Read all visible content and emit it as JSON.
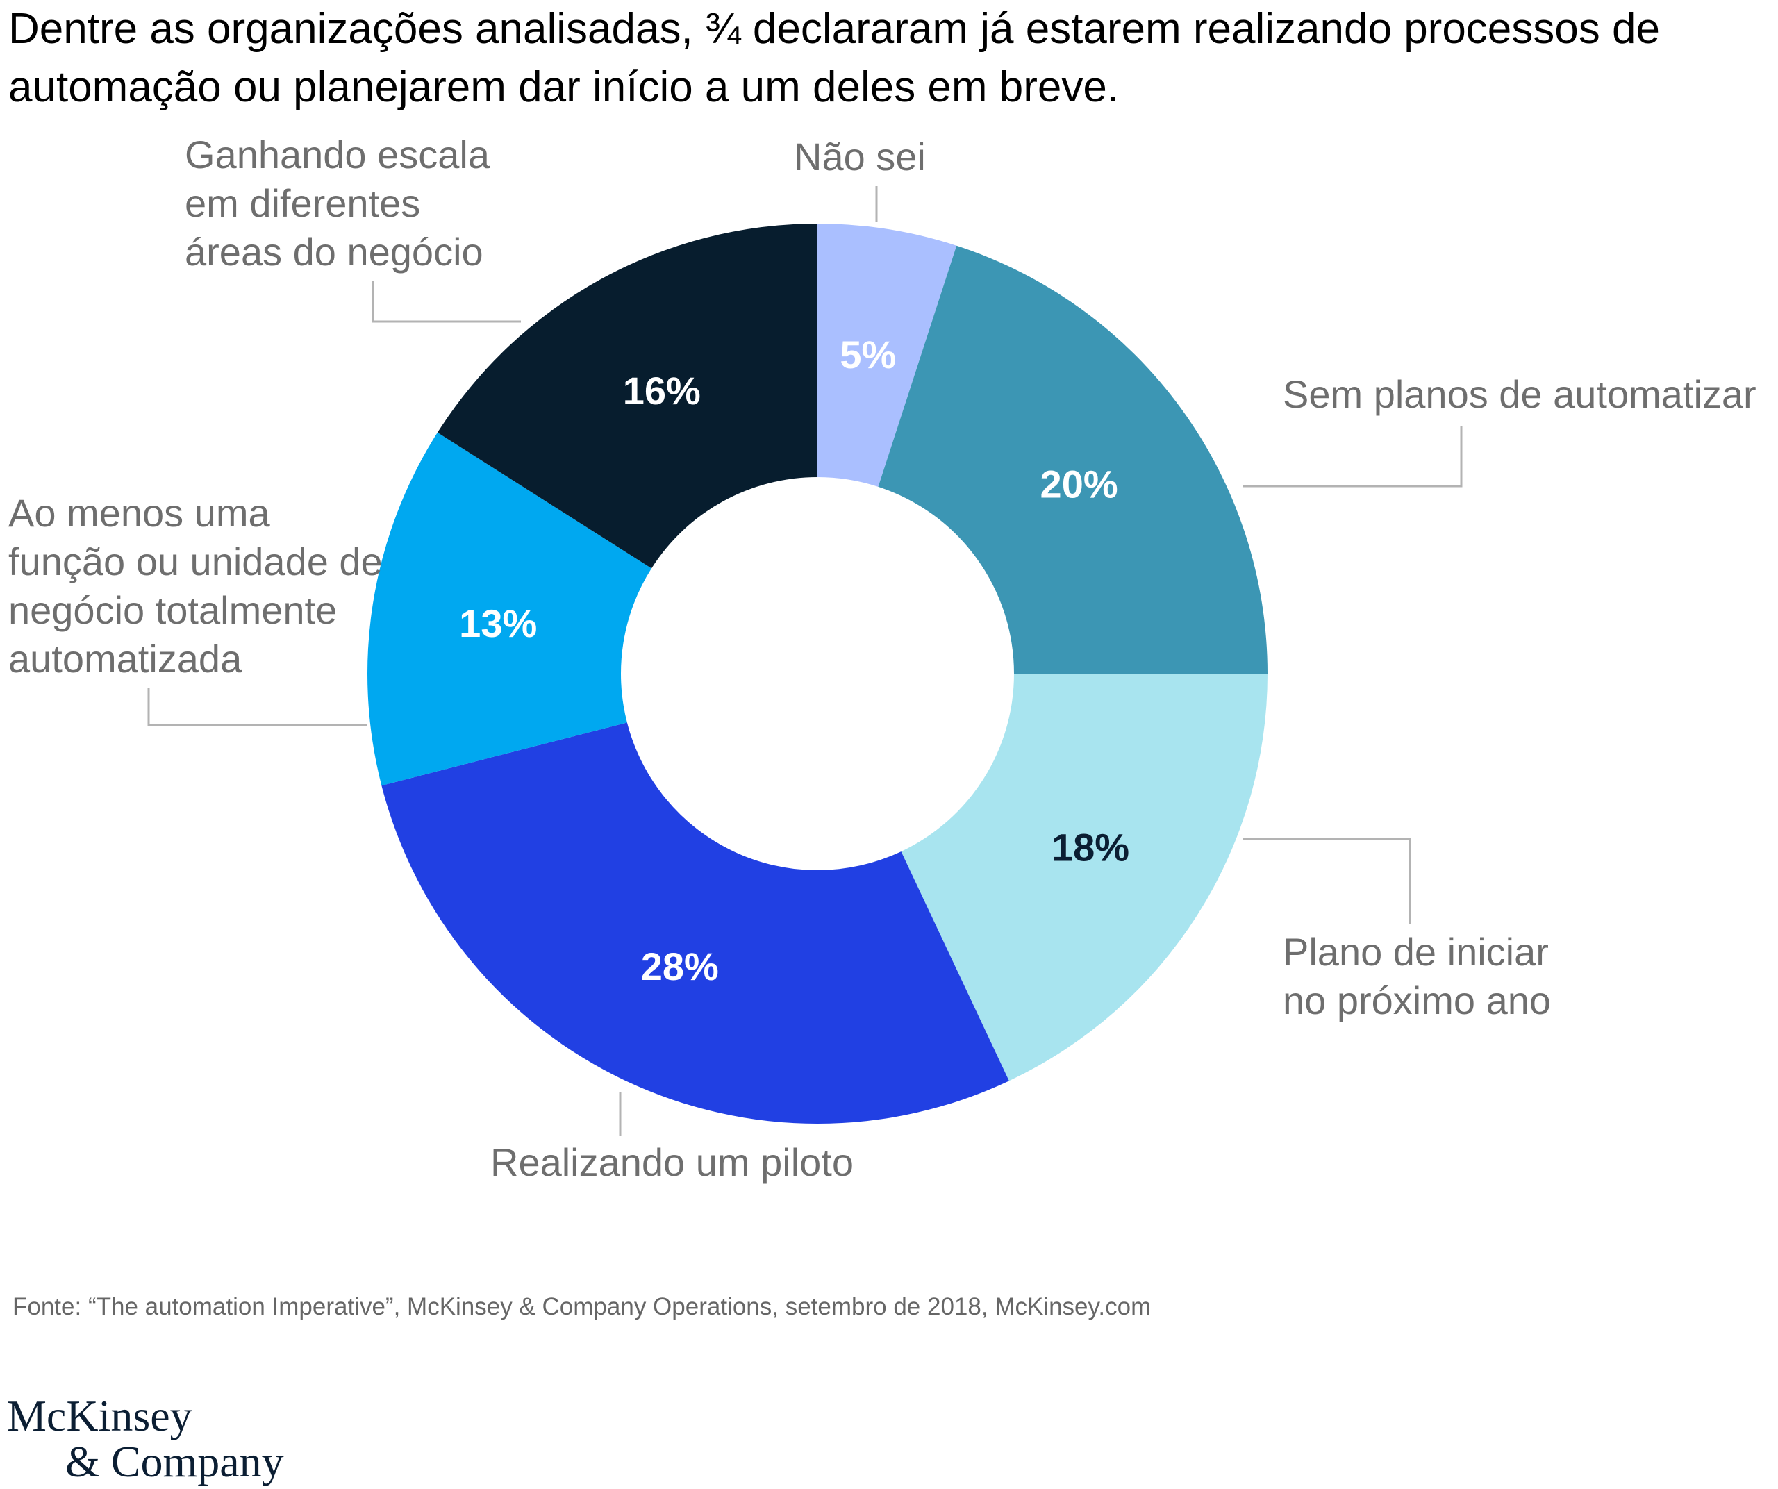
{
  "title": "Dentre as organizações analisadas, ¾ declararam já estarem realizando processos de automação ou planejarem dar início a um deles em breve.",
  "source": "Fonte: “The automation Imperative”, McKinsey & Company Operations, setembro de 2018, McKinsey.com",
  "logo": {
    "line1": "McKinsey",
    "line2": "& Company"
  },
  "chart_data": {
    "type": "pie",
    "variant": "donut",
    "start": "12 o'clock, clockwise",
    "unit": "%",
    "slices": [
      {
        "label": "Não sei",
        "value": 5,
        "display": "5%",
        "color": "#aabfff",
        "text_color": "#ffffff"
      },
      {
        "label": "Sem planos de automatizar",
        "value": 20,
        "display": "20%",
        "color": "#3c96b4",
        "text_color": "#ffffff"
      },
      {
        "label": "Plano de iniciar no próximo ano",
        "value": 18,
        "display": "18%",
        "color": "#a8e4ef",
        "text_color": "#0b1e33"
      },
      {
        "label": "Realizando um piloto",
        "value": 28,
        "display": "28%",
        "color": "#2140e3",
        "text_color": "#ffffff"
      },
      {
        "label": "Ao menos uma função ou unidade de negócio totalmente automatizada",
        "value": 13,
        "display": "13%",
        "color": "#00a8f0",
        "text_color": "#ffffff"
      },
      {
        "label": "Ganhando escala em diferentes áreas do negócio",
        "value": 16,
        "display": "16%",
        "color": "#071d2e",
        "text_color": "#ffffff"
      }
    ]
  }
}
